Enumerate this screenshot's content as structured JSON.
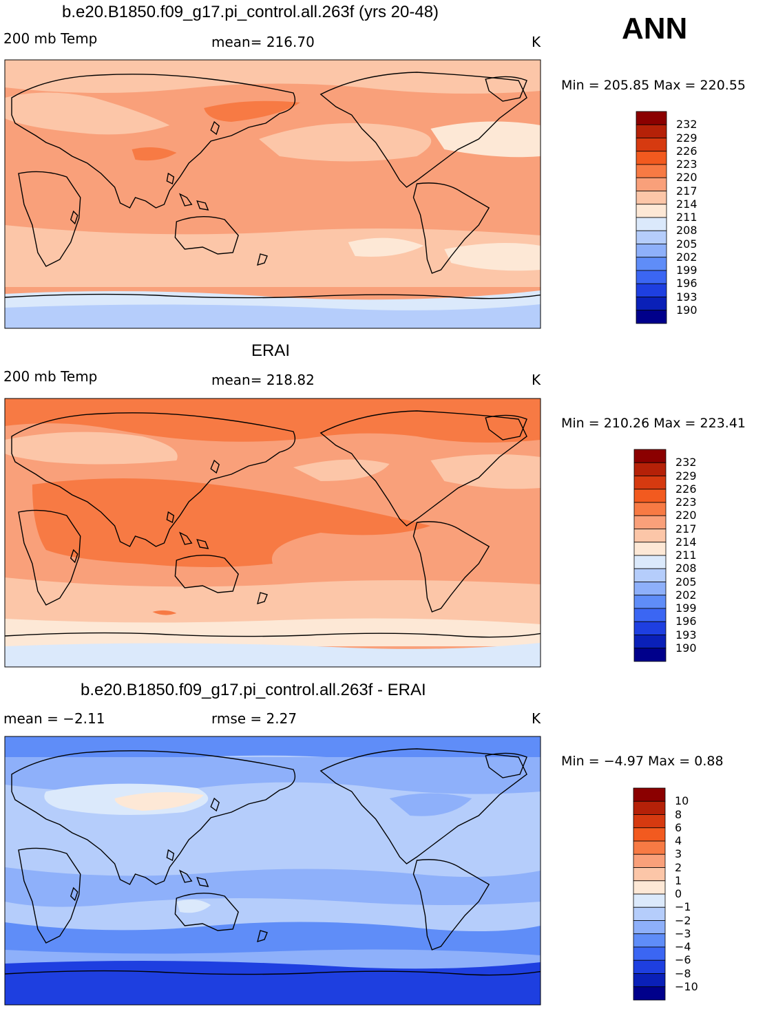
{
  "season": "ANN",
  "panels": [
    {
      "title": "b.e20.B1850.f09_g17.pi_control.all.263f (yrs 20-48)",
      "left_label": "200 mb Temp",
      "center_label": "mean= 216.70",
      "units": "K",
      "minmax": "Min = 205.85 Max = 220.55",
      "colorbar_labels": [
        "232",
        "229",
        "226",
        "223",
        "220",
        "217",
        "214",
        "211",
        "208",
        "205",
        "202",
        "199",
        "196",
        "193",
        "190"
      ]
    },
    {
      "title": "ERAI",
      "left_label": "200 mb Temp",
      "center_label": "mean= 218.82",
      "units": "K",
      "minmax": "Min = 210.26 Max = 223.41",
      "colorbar_labels": [
        "232",
        "229",
        "226",
        "223",
        "220",
        "217",
        "214",
        "211",
        "208",
        "205",
        "202",
        "199",
        "196",
        "193",
        "190"
      ]
    },
    {
      "title": "b.e20.B1850.f09_g17.pi_control.all.263f - ERAI",
      "left_label": "mean =   −2.11",
      "center_label": "rmse =    2.27",
      "units": "K",
      "minmax": "Min =   −4.97 Max =    0.88",
      "colorbar_labels": [
        "10",
        "8",
        "6",
        "4",
        "3",
        "2",
        "1",
        "0",
        "−1",
        "−2",
        "−3",
        "−4",
        "−6",
        "−8",
        "−10"
      ]
    }
  ],
  "colors": {
    "scale": [
      "#8b0000",
      "#b52108",
      "#d63a10",
      "#f25a1f",
      "#f77a44",
      "#f9a07a",
      "#fcc6a8",
      "#fde8d6",
      "#dbe9fb",
      "#b5cdfb",
      "#8eb0fa",
      "#5f8df8",
      "#3b66f3",
      "#1e3fe0",
      "#0a20b8",
      "#00008b"
    ],
    "model_base": "#f9a07a",
    "model_warm": "#f77a44",
    "model_light": "#fcc6a8",
    "model_pale": "#fde8d6",
    "obs_base": "#f9a07a",
    "obs_warm": "#f77a44",
    "diff_base": "#b5cdfb",
    "diff_mid": "#8eb0fa",
    "diff_dark": "#5f8df8",
    "diff_light": "#dbe9fb",
    "land_outline": "#000000"
  },
  "chart_data": [
    {
      "type": "heatmap",
      "title": "b.e20.B1850.f09_g17.pi_control.all.263f (yrs 20-48)",
      "variable": "200 mb Temp",
      "units": "K",
      "mean": 216.7,
      "min": 205.85,
      "max": 220.55,
      "contour_levels": [
        190,
        193,
        196,
        199,
        202,
        205,
        208,
        211,
        214,
        217,
        220,
        223,
        226,
        229,
        232
      ]
    },
    {
      "type": "heatmap",
      "title": "ERAI",
      "variable": "200 mb Temp",
      "units": "K",
      "mean": 218.82,
      "min": 210.26,
      "max": 223.41,
      "contour_levels": [
        190,
        193,
        196,
        199,
        202,
        205,
        208,
        211,
        214,
        217,
        220,
        223,
        226,
        229,
        232
      ]
    },
    {
      "type": "heatmap",
      "title": "b.e20.B1850.f09_g17.pi_control.all.263f - ERAI",
      "units": "K",
      "mean": -2.11,
      "rmse": 2.27,
      "min": -4.97,
      "max": 0.88,
      "contour_levels": [
        -10,
        -8,
        -6,
        -4,
        -3,
        -2,
        -1,
        0,
        1,
        2,
        3,
        4,
        6,
        8,
        10
      ]
    }
  ]
}
